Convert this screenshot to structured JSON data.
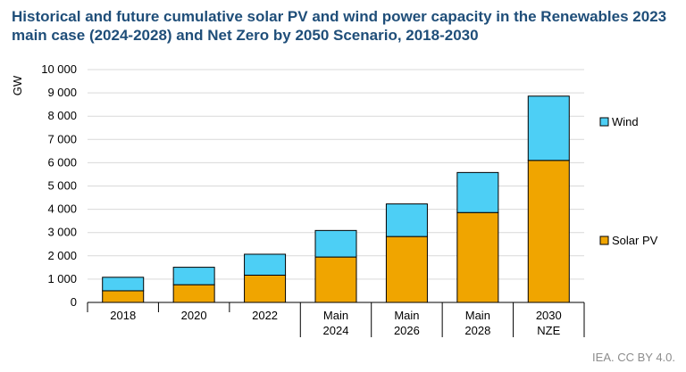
{
  "title": "Historical and future cumulative solar PV and wind power capacity in the Renewables 2023 main case (2024-2028) and Net Zero by 2050 Scenario, 2018-2030",
  "credit": "IEA. CC BY 4.0.",
  "colors": {
    "solar": "#f0a500",
    "wind": "#4dcff5",
    "title": "#1f4e79"
  },
  "chart_data": {
    "type": "bar",
    "stacked": true,
    "ylabel": "GW",
    "ylim": [
      0,
      10000
    ],
    "yticks": [
      0,
      1000,
      2000,
      3000,
      4000,
      5000,
      6000,
      7000,
      8000,
      9000,
      10000
    ],
    "ytick_labels": [
      "0",
      "1 000",
      "2 000",
      "3 000",
      "4 000",
      "5 000",
      "6 000",
      "7 000",
      "8 000",
      "9 000",
      "10 000"
    ],
    "grid": true,
    "legend_position": "right",
    "categories": [
      {
        "line1": "2018",
        "line2": ""
      },
      {
        "line1": "2020",
        "line2": ""
      },
      {
        "line1": "2022",
        "line2": ""
      },
      {
        "line1": "Main",
        "line2": "2024"
      },
      {
        "line1": "Main",
        "line2": "2026"
      },
      {
        "line1": "Main",
        "line2": "2028"
      },
      {
        "line1": "2030",
        "line2": "NZE"
      }
    ],
    "series": [
      {
        "name": "Solar PV",
        "values": [
          500,
          760,
          1170,
          1950,
          2830,
          3860,
          6100
        ]
      },
      {
        "name": "Wind",
        "values": [
          580,
          750,
          900,
          1140,
          1400,
          1720,
          2760
        ]
      }
    ]
  }
}
